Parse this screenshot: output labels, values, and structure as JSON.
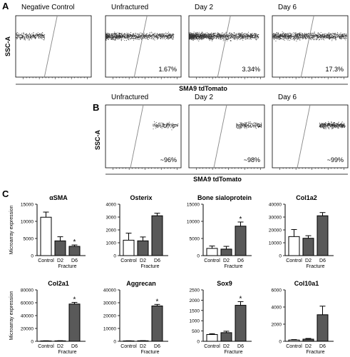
{
  "panel_a": {
    "letter": "A",
    "y_label": "SSC-A",
    "x_label": "SMA9 tdTomato",
    "plots": [
      {
        "title": "Negative Control",
        "percent": ""
      },
      {
        "title": "Unfractured",
        "percent": "1.67%"
      },
      {
        "title": "Day 2",
        "percent": "3.34%"
      },
      {
        "title": "Day 6",
        "percent": "17.3%"
      }
    ]
  },
  "panel_b": {
    "letter": "B",
    "y_label": "SSC-A",
    "x_label": "SMA9 tdTomato",
    "plots": [
      {
        "title": "Unfractured",
        "percent": "~96%"
      },
      {
        "title": "Day 2",
        "percent": "~98%"
      },
      {
        "title": "Day 6",
        "percent": "~99%"
      }
    ]
  },
  "panel_c": {
    "letter": "C",
    "y_label": "Microarray expression",
    "x_group_label": "Fracture",
    "charts": [
      {
        "title": "αSMA",
        "ylim": [
          0,
          15000
        ],
        "ticks": [
          0,
          5000,
          10000,
          15000
        ],
        "tick_labels": [
          "0",
          "5000",
          "10000",
          "15000"
        ],
        "categories": [
          "Control",
          "D2",
          "D6"
        ],
        "values": [
          11200,
          4300,
          2700
        ],
        "errors": [
          1500,
          1200,
          400
        ],
        "significant": [
          false,
          false,
          true
        ]
      },
      {
        "title": "Osterix",
        "ylim": [
          0,
          4000
        ],
        "ticks": [
          0,
          1000,
          2000,
          3000,
          4000
        ],
        "tick_labels": [
          "0",
          "1000",
          "2000",
          "3000",
          "4000"
        ],
        "categories": [
          "Control",
          "D2",
          "D6"
        ],
        "values": [
          1200,
          1150,
          3100
        ],
        "errors": [
          550,
          300,
          200
        ],
        "significant": [
          false,
          false,
          false
        ]
      },
      {
        "title": "Bone sialoprotein",
        "ylim": [
          0,
          15000
        ],
        "ticks": [
          0,
          5000,
          10000,
          15000
        ],
        "tick_labels": [
          "0",
          "5000",
          "10000",
          "15000"
        ],
        "categories": [
          "Control",
          "D2",
          "D6"
        ],
        "values": [
          2100,
          1900,
          8600
        ],
        "errors": [
          700,
          800,
          1200
        ],
        "significant": [
          false,
          false,
          true
        ]
      },
      {
        "title": "Col1a2",
        "ylim": [
          0,
          40000
        ],
        "ticks": [
          0,
          10000,
          20000,
          30000,
          40000
        ],
        "tick_labels": [
          "0",
          "10000",
          "20000",
          "30000",
          "40000"
        ],
        "categories": [
          "Control",
          "D2",
          "D6"
        ],
        "values": [
          14800,
          13500,
          31000
        ],
        "errors": [
          5500,
          2000,
          2500
        ],
        "significant": [
          false,
          false,
          false
        ]
      },
      {
        "title": "Col2a1",
        "ylim": [
          0,
          80000
        ],
        "ticks": [
          0,
          20000,
          40000,
          60000,
          80000
        ],
        "tick_labels": [
          "0",
          "20000",
          "40000",
          "60000",
          "80000"
        ],
        "categories": [
          "Control",
          "D2",
          "D6"
        ],
        "values": [
          600,
          700,
          58000
        ],
        "errors": [
          200,
          200,
          2500
        ],
        "significant": [
          false,
          false,
          true
        ]
      },
      {
        "title": "Aggrecan",
        "ylim": [
          0,
          40000
        ],
        "ticks": [
          0,
          10000,
          20000,
          30000,
          40000
        ],
        "tick_labels": [
          "0",
          "10000",
          "20000",
          "30000",
          "40000"
        ],
        "categories": [
          "Control",
          "D2",
          "D6"
        ],
        "values": [
          300,
          400,
          27500
        ],
        "errors": [
          100,
          100,
          1200
        ],
        "significant": [
          false,
          false,
          true
        ]
      },
      {
        "title": "Sox9",
        "ylim": [
          0,
          2500
        ],
        "ticks": [
          0,
          500,
          1000,
          1500,
          2000,
          2500
        ],
        "tick_labels": [
          "0",
          "500",
          "1000",
          "1500",
          "2000",
          "2500"
        ],
        "categories": [
          "Control",
          "D2",
          "D6"
        ],
        "values": [
          330,
          420,
          1750
        ],
        "errors": [
          40,
          70,
          180
        ],
        "significant": [
          false,
          false,
          true
        ]
      },
      {
        "title": "Col10a1",
        "ylim": [
          0,
          6000
        ],
        "ticks": [
          0,
          2000,
          4000,
          6000
        ],
        "tick_labels": [
          "0",
          "2000",
          "4000",
          "6000"
        ],
        "categories": [
          "Control",
          "D2",
          "D6"
        ],
        "values": [
          150,
          250,
          3100
        ],
        "errors": [
          50,
          80,
          1000
        ],
        "significant": [
          false,
          false,
          false
        ]
      }
    ]
  },
  "chart_data": [
    {
      "type": "bar",
      "title": "αSMA",
      "ylabel": "Microarray expression",
      "xlabel": "Fracture",
      "categories": [
        "Control",
        "D2",
        "D6"
      ],
      "values": [
        11200,
        4300,
        2700
      ],
      "ylim": [
        0,
        15000
      ]
    },
    {
      "type": "bar",
      "title": "Osterix",
      "ylabel": "",
      "xlabel": "Fracture",
      "categories": [
        "Control",
        "D2",
        "D6"
      ],
      "values": [
        1200,
        1150,
        3100
      ],
      "ylim": [
        0,
        4000
      ]
    },
    {
      "type": "bar",
      "title": "Bone sialoprotein",
      "ylabel": "",
      "xlabel": "Fracture",
      "categories": [
        "Control",
        "D2",
        "D6"
      ],
      "values": [
        2100,
        1900,
        8600
      ],
      "ylim": [
        0,
        15000
      ]
    },
    {
      "type": "bar",
      "title": "Col1a2",
      "ylabel": "",
      "xlabel": "Fracture",
      "categories": [
        "Control",
        "D2",
        "D6"
      ],
      "values": [
        14800,
        13500,
        31000
      ],
      "ylim": [
        0,
        40000
      ]
    },
    {
      "type": "bar",
      "title": "Col2a1",
      "ylabel": "Microarray expression",
      "xlabel": "Fracture",
      "categories": [
        "Control",
        "D2",
        "D6"
      ],
      "values": [
        600,
        700,
        58000
      ],
      "ylim": [
        0,
        80000
      ]
    },
    {
      "type": "bar",
      "title": "Aggrecan",
      "ylabel": "",
      "xlabel": "Fracture",
      "categories": [
        "Control",
        "D2",
        "D6"
      ],
      "values": [
        300,
        400,
        27500
      ],
      "ylim": [
        0,
        40000
      ]
    },
    {
      "type": "bar",
      "title": "Sox9",
      "ylabel": "",
      "xlabel": "Fracture",
      "categories": [
        "Control",
        "D2",
        "D6"
      ],
      "values": [
        330,
        420,
        1750
      ],
      "ylim": [
        0,
        2500
      ]
    },
    {
      "type": "bar",
      "title": "Col10a1",
      "ylabel": "",
      "xlabel": "Fracture",
      "categories": [
        "Control",
        "D2",
        "D6"
      ],
      "values": [
        150,
        250,
        3100
      ],
      "ylim": [
        0,
        6000
      ]
    }
  ],
  "colors": {
    "control_fill": "#ffffff",
    "d2_fill": "#595959",
    "d6_fill": "#595959",
    "dots": "#333333",
    "gate": "#888888"
  }
}
